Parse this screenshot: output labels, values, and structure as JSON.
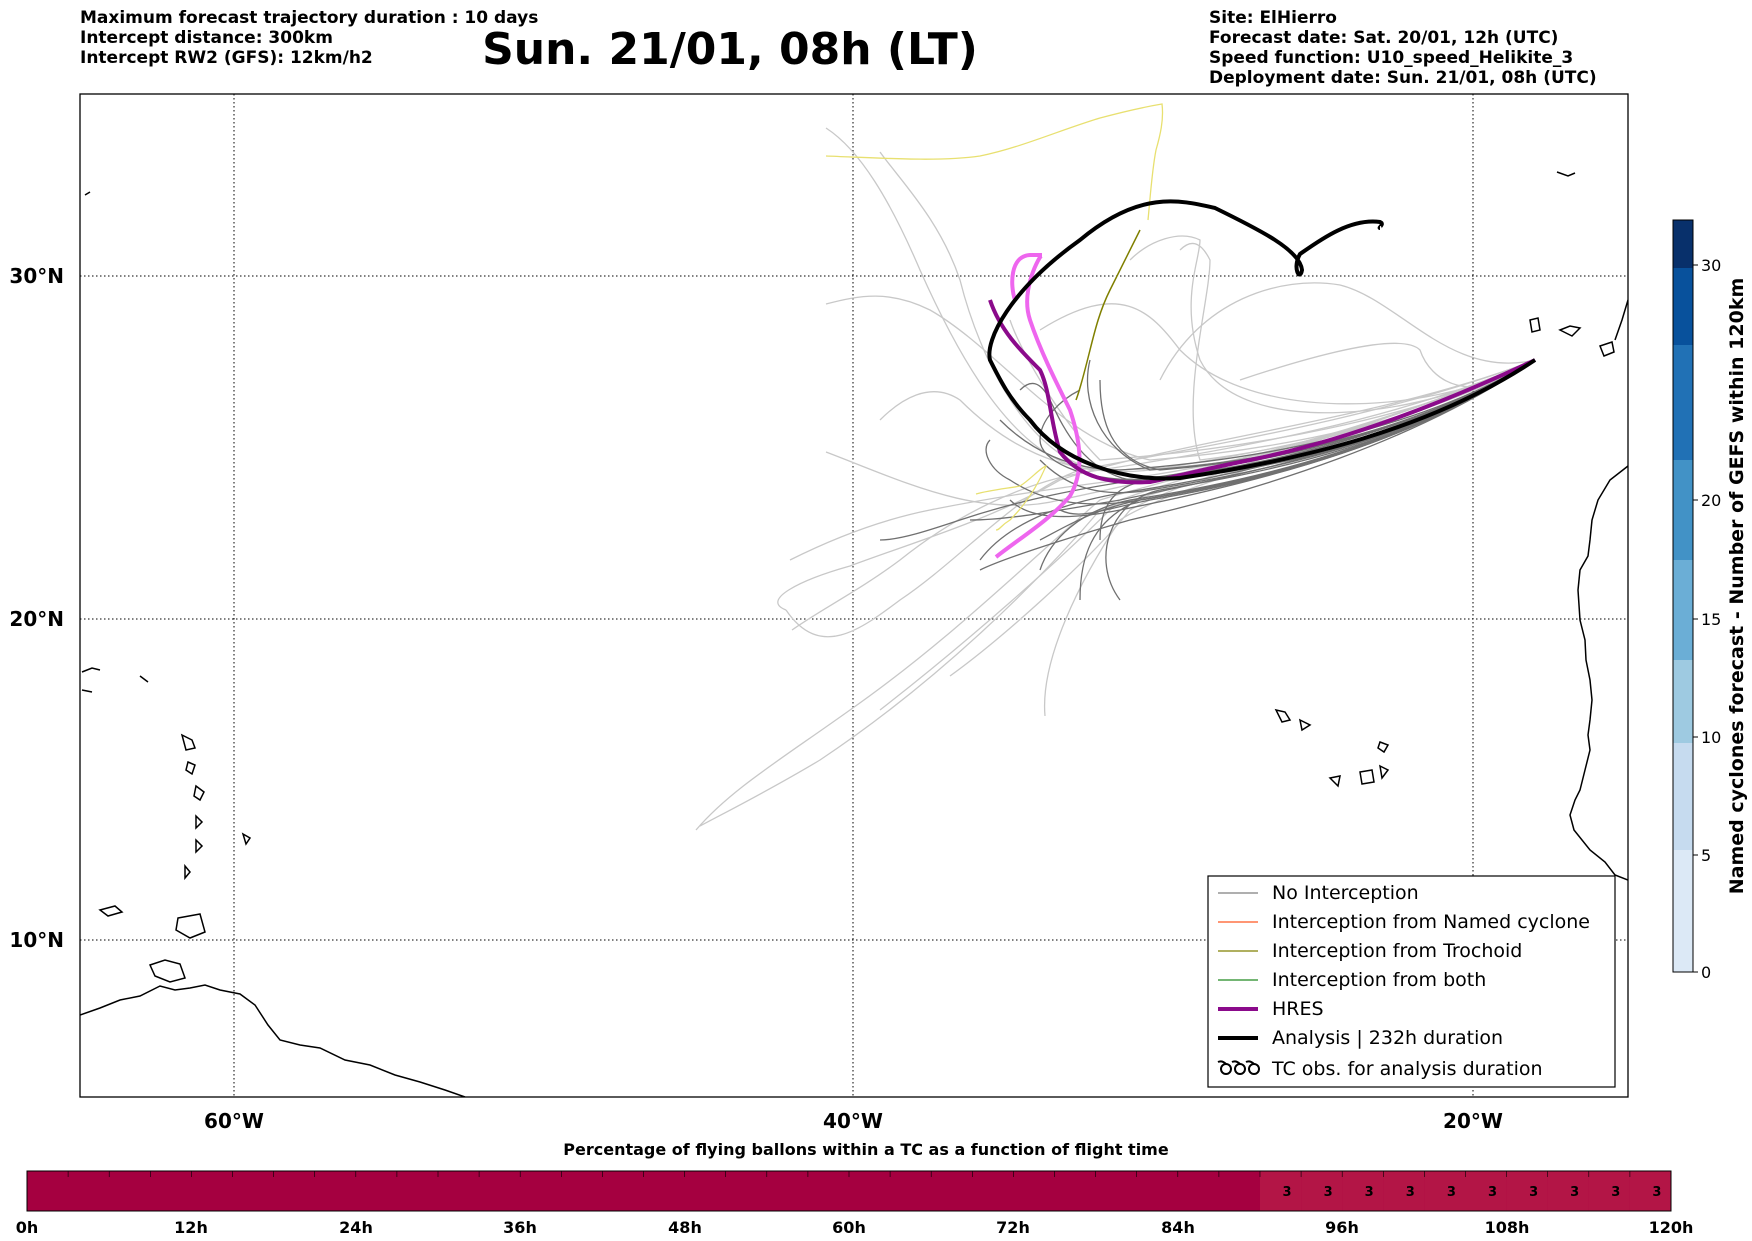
{
  "header": {
    "left_lines": [
      "Maximum forecast trajectory duration : 10 days",
      "Intercept distance: 300km",
      "Intercept RW2 (GFS):  12km/h2"
    ],
    "title": "Sun. 21/01, 08h (LT)",
    "right_lines": [
      "Site: ElHierro",
      "Forecast date: Sat. 20/01, 12h (UTC)",
      "Speed function: U10_speed_Helikite_3",
      "Deployment date: Sun. 21/01, 08h (UTC)"
    ]
  },
  "map": {
    "lat_labels": [
      "30°N",
      "20°N",
      "10°N"
    ],
    "lon_labels": [
      "60°W",
      "40°W",
      "20°W"
    ],
    "grid": "dotted"
  },
  "legend": {
    "items": [
      {
        "label": "No Interception",
        "color": "#7f7f7f",
        "style": "thin"
      },
      {
        "label": "Interception from Named cyclone",
        "color": "#ff5722",
        "style": "thin"
      },
      {
        "label": "Interception from Trochoid",
        "color": "#808000",
        "style": "thin"
      },
      {
        "label": "Interception from both",
        "color": "#228b22",
        "style": "thin"
      },
      {
        "label": "HRES",
        "color": "#8b0a8b",
        "style": "thick"
      },
      {
        "label": "Analysis | 232h duration",
        "color": "#000000",
        "style": "thick"
      },
      {
        "label": "TC obs. for analysis duration",
        "color": "#000000",
        "style": "symbol"
      }
    ]
  },
  "colorbar_right": {
    "label": "Named cyclones forecast - Number of GEFS within 120km",
    "ticks": [
      "0",
      "5",
      "10",
      "15",
      "20",
      "30"
    ],
    "colors": [
      "#dce9f6",
      "#c6dbef",
      "#9ecae1",
      "#6baed6",
      "#4292c6",
      "#2171b5",
      "#08519c",
      "#08306b"
    ]
  },
  "bottom_bar": {
    "title": "Percentage of flying ballons within a TC as a function of flight time",
    "time_labels": [
      "0h",
      "12h",
      "24h",
      "36h",
      "48h",
      "60h",
      "72h",
      "84h",
      "96h",
      "108h",
      "120h"
    ],
    "fill_color": "#a50040",
    "highlight_color": "#b31546",
    "highlight_value": "3",
    "highlight_count": 10
  }
}
